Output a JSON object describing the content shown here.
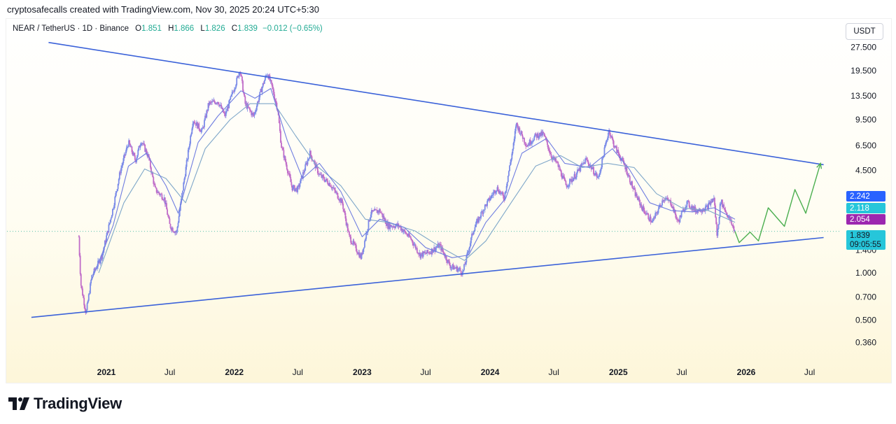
{
  "header": {
    "credit": "cryptosafecalls created with TradingView.com, Nov 30, 2025 20:24 UTC+5:30",
    "symbol": "NEAR / TetherUS · 1D · Binance",
    "open_label": "O",
    "open": "1.851",
    "high_label": "H",
    "high": "1.866",
    "low_label": "L",
    "low": "1.826",
    "close_label": "C",
    "close": "1.839",
    "change": "−0.012 (−0.65%)"
  },
  "unit": "USDT",
  "brand": "TradingView",
  "colors": {
    "trendline": "#3b62d9",
    "projection": "#4caf50",
    "candle_up": "#7a8be8",
    "candle_down": "#c06cc8",
    "ma_fast": "#6f7de0",
    "ma_slow": "#7fa7c9",
    "price_line": "#22ab94",
    "badge_blue": "#2962ff",
    "badge_teal": "#26c6da",
    "badge_purple": "#9c27b0"
  },
  "chart_data": {
    "type": "line",
    "scale": "log",
    "y_ticks": [
      "27.500",
      "19.500",
      "13.500",
      "9.500",
      "6.500",
      "4.500",
      "1.400",
      "1.000",
      "0.700",
      "0.500",
      "0.360"
    ],
    "x_ticks": [
      "2021",
      "Jul",
      "2022",
      "Jul",
      "2023",
      "Jul",
      "2024",
      "Jul",
      "2025",
      "Jul",
      "2026",
      "Jul"
    ],
    "price_badges": [
      {
        "value": "2.242",
        "color": "#2962ff"
      },
      {
        "value": "2.118",
        "color": "#26c6da"
      },
      {
        "value": "2.054",
        "color": "#9c27b0"
      },
      {
        "value": "1.839",
        "countdown": "09:05:55",
        "color": "#26c6da"
      }
    ],
    "price_series": {
      "name": "NEAR/USDT",
      "points": [
        [
          "2020-10-14",
          1.7
        ],
        [
          "2020-10-20",
          0.85
        ],
        [
          "2020-11-04",
          0.55
        ],
        [
          "2020-11-20",
          0.95
        ],
        [
          "2020-12-20",
          1.3
        ],
        [
          "2021-01-20",
          2.6
        ],
        [
          "2021-02-10",
          4.5
        ],
        [
          "2021-03-05",
          6.8
        ],
        [
          "2021-03-25",
          5.2
        ],
        [
          "2021-04-10",
          7.0
        ],
        [
          "2021-05-01",
          5.5
        ],
        [
          "2021-05-20",
          3.4
        ],
        [
          "2021-06-15",
          3.0
        ],
        [
          "2021-07-01",
          2.0
        ],
        [
          "2021-07-20",
          1.8
        ],
        [
          "2021-08-10",
          3.8
        ],
        [
          "2021-09-05",
          9.5
        ],
        [
          "2021-10-01",
          8.0
        ],
        [
          "2021-10-20",
          12.0
        ],
        [
          "2021-11-15",
          12.5
        ],
        [
          "2021-12-05",
          10.0
        ],
        [
          "2022-01-10",
          17.5
        ],
        [
          "2022-01-17",
          20.0
        ],
        [
          "2022-02-01",
          12.0
        ],
        [
          "2022-02-25",
          10.0
        ],
        [
          "2022-03-20",
          15.0
        ],
        [
          "2022-04-05",
          19.0
        ],
        [
          "2022-04-20",
          15.0
        ],
        [
          "2022-05-05",
          11.0
        ],
        [
          "2022-05-15",
          6.5
        ],
        [
          "2022-06-15",
          3.5
        ],
        [
          "2022-07-01",
          3.4
        ],
        [
          "2022-08-05",
          5.8
        ],
        [
          "2022-09-01",
          4.2
        ],
        [
          "2022-10-01",
          3.7
        ],
        [
          "2022-11-05",
          2.8
        ],
        [
          "2022-11-25",
          1.7
        ],
        [
          "2022-12-29",
          1.25
        ],
        [
          "2023-01-25",
          2.4
        ],
        [
          "2023-02-20",
          2.5
        ],
        [
          "2023-03-15",
          2.0
        ],
        [
          "2023-04-15",
          2.0
        ],
        [
          "2023-05-20",
          1.65
        ],
        [
          "2023-06-15",
          1.3
        ],
        [
          "2023-07-10",
          1.35
        ],
        [
          "2023-08-10",
          1.5
        ],
        [
          "2023-09-10",
          1.1
        ],
        [
          "2023-10-05",
          1.05
        ],
        [
          "2023-10-15",
          1.0
        ],
        [
          "2023-11-15",
          1.9
        ],
        [
          "2023-12-15",
          2.6
        ],
        [
          "2024-01-20",
          3.5
        ],
        [
          "2024-02-10",
          3.0
        ],
        [
          "2024-03-10",
          7.0
        ],
        [
          "2024-03-15",
          9.0
        ],
        [
          "2024-04-15",
          6.5
        ],
        [
          "2024-05-10",
          7.5
        ],
        [
          "2024-06-01",
          7.7
        ],
        [
          "2024-06-25",
          5.5
        ],
        [
          "2024-07-10",
          5.0
        ],
        [
          "2024-08-05",
          3.6
        ],
        [
          "2024-09-01",
          4.2
        ],
        [
          "2024-10-01",
          5.3
        ],
        [
          "2024-11-05",
          4.0
        ],
        [
          "2024-12-05",
          8.2
        ],
        [
          "2024-12-20",
          6.5
        ],
        [
          "2025-01-20",
          4.8
        ],
        [
          "2025-02-15",
          3.3
        ],
        [
          "2025-03-10",
          2.6
        ],
        [
          "2025-04-08",
          2.1
        ],
        [
          "2025-05-10",
          3.0
        ],
        [
          "2025-06-01",
          2.8
        ],
        [
          "2025-06-20",
          2.1
        ],
        [
          "2025-07-15",
          2.8
        ],
        [
          "2025-08-10",
          2.5
        ],
        [
          "2025-09-10",
          2.6
        ],
        [
          "2025-10-01",
          3.0
        ],
        [
          "2025-10-10",
          1.7
        ],
        [
          "2025-10-20",
          2.9
        ],
        [
          "2025-11-10",
          2.3
        ],
        [
          "2025-11-30",
          1.84
        ]
      ]
    },
    "ma_fast": {
      "points": [
        [
          "2020-11-20",
          0.9
        ],
        [
          "2021-01-20",
          2.0
        ],
        [
          "2021-03-05",
          4.8
        ],
        [
          "2021-04-25",
          5.8
        ],
        [
          "2021-06-20",
          3.6
        ],
        [
          "2021-07-25",
          2.4
        ],
        [
          "2021-09-20",
          6.8
        ],
        [
          "2021-11-15",
          10.0
        ],
        [
          "2022-01-20",
          14.5
        ],
        [
          "2022-03-01",
          13.0
        ],
        [
          "2022-04-15",
          15.0
        ],
        [
          "2022-06-01",
          7.0
        ],
        [
          "2022-07-15",
          4.0
        ],
        [
          "2022-09-01",
          5.0
        ],
        [
          "2022-11-01",
          3.3
        ],
        [
          "2023-01-01",
          1.7
        ],
        [
          "2023-02-20",
          2.2
        ],
        [
          "2023-05-01",
          1.95
        ],
        [
          "2023-07-01",
          1.45
        ],
        [
          "2023-09-15",
          1.25
        ],
        [
          "2023-11-01",
          1.3
        ],
        [
          "2023-12-20",
          2.1
        ],
        [
          "2024-02-15",
          3.0
        ],
        [
          "2024-04-01",
          5.8
        ],
        [
          "2024-06-10",
          7.2
        ],
        [
          "2024-08-01",
          5.0
        ],
        [
          "2024-10-10",
          4.7
        ],
        [
          "2024-12-15",
          6.2
        ],
        [
          "2025-02-01",
          4.6
        ],
        [
          "2025-04-01",
          2.8
        ],
        [
          "2025-06-01",
          2.5
        ],
        [
          "2025-08-01",
          2.45
        ],
        [
          "2025-10-01",
          2.6
        ],
        [
          "2025-11-30",
          2.2
        ]
      ]
    },
    "ma_slow": {
      "points": [
        [
          "2020-12-10",
          1.0
        ],
        [
          "2021-02-20",
          2.8
        ],
        [
          "2021-04-20",
          4.6
        ],
        [
          "2021-06-20",
          4.0
        ],
        [
          "2021-08-15",
          2.8
        ],
        [
          "2021-10-10",
          6.2
        ],
        [
          "2021-12-20",
          9.5
        ],
        [
          "2022-02-15",
          12.0
        ],
        [
          "2022-04-25",
          12.0
        ],
        [
          "2022-06-25",
          7.5
        ],
        [
          "2022-08-25",
          4.8
        ],
        [
          "2022-11-01",
          3.6
        ],
        [
          "2023-01-10",
          2.2
        ],
        [
          "2023-03-15",
          2.1
        ],
        [
          "2023-06-01",
          1.85
        ],
        [
          "2023-08-15",
          1.45
        ],
        [
          "2023-10-20",
          1.2
        ],
        [
          "2023-12-20",
          1.6
        ],
        [
          "2024-03-01",
          2.8
        ],
        [
          "2024-05-10",
          4.8
        ],
        [
          "2024-07-20",
          5.6
        ],
        [
          "2024-09-20",
          4.7
        ],
        [
          "2024-12-01",
          5.0
        ],
        [
          "2025-02-15",
          4.7
        ],
        [
          "2025-04-20",
          3.2
        ],
        [
          "2025-07-01",
          2.6
        ],
        [
          "2025-09-15",
          2.5
        ],
        [
          "2025-11-30",
          2.1
        ]
      ]
    },
    "upper_trendline": [
      [
        "2020-07-20",
        29.5
      ],
      [
        "2026-08-10",
        4.9
      ]
    ],
    "lower_trendline": [
      [
        "2020-06-01",
        0.52
      ],
      [
        "2026-08-10",
        1.68
      ]
    ],
    "projection": [
      [
        "2025-11-30",
        1.84
      ],
      [
        "2025-12-12",
        1.56
      ],
      [
        "2026-01-12",
        1.82
      ],
      [
        "2026-02-05",
        1.6
      ],
      [
        "2026-03-05",
        2.6
      ],
      [
        "2026-04-20",
        1.98
      ],
      [
        "2026-05-20",
        3.4
      ],
      [
        "2026-06-20",
        2.4
      ],
      [
        "2026-08-01",
        5.0
      ]
    ]
  }
}
